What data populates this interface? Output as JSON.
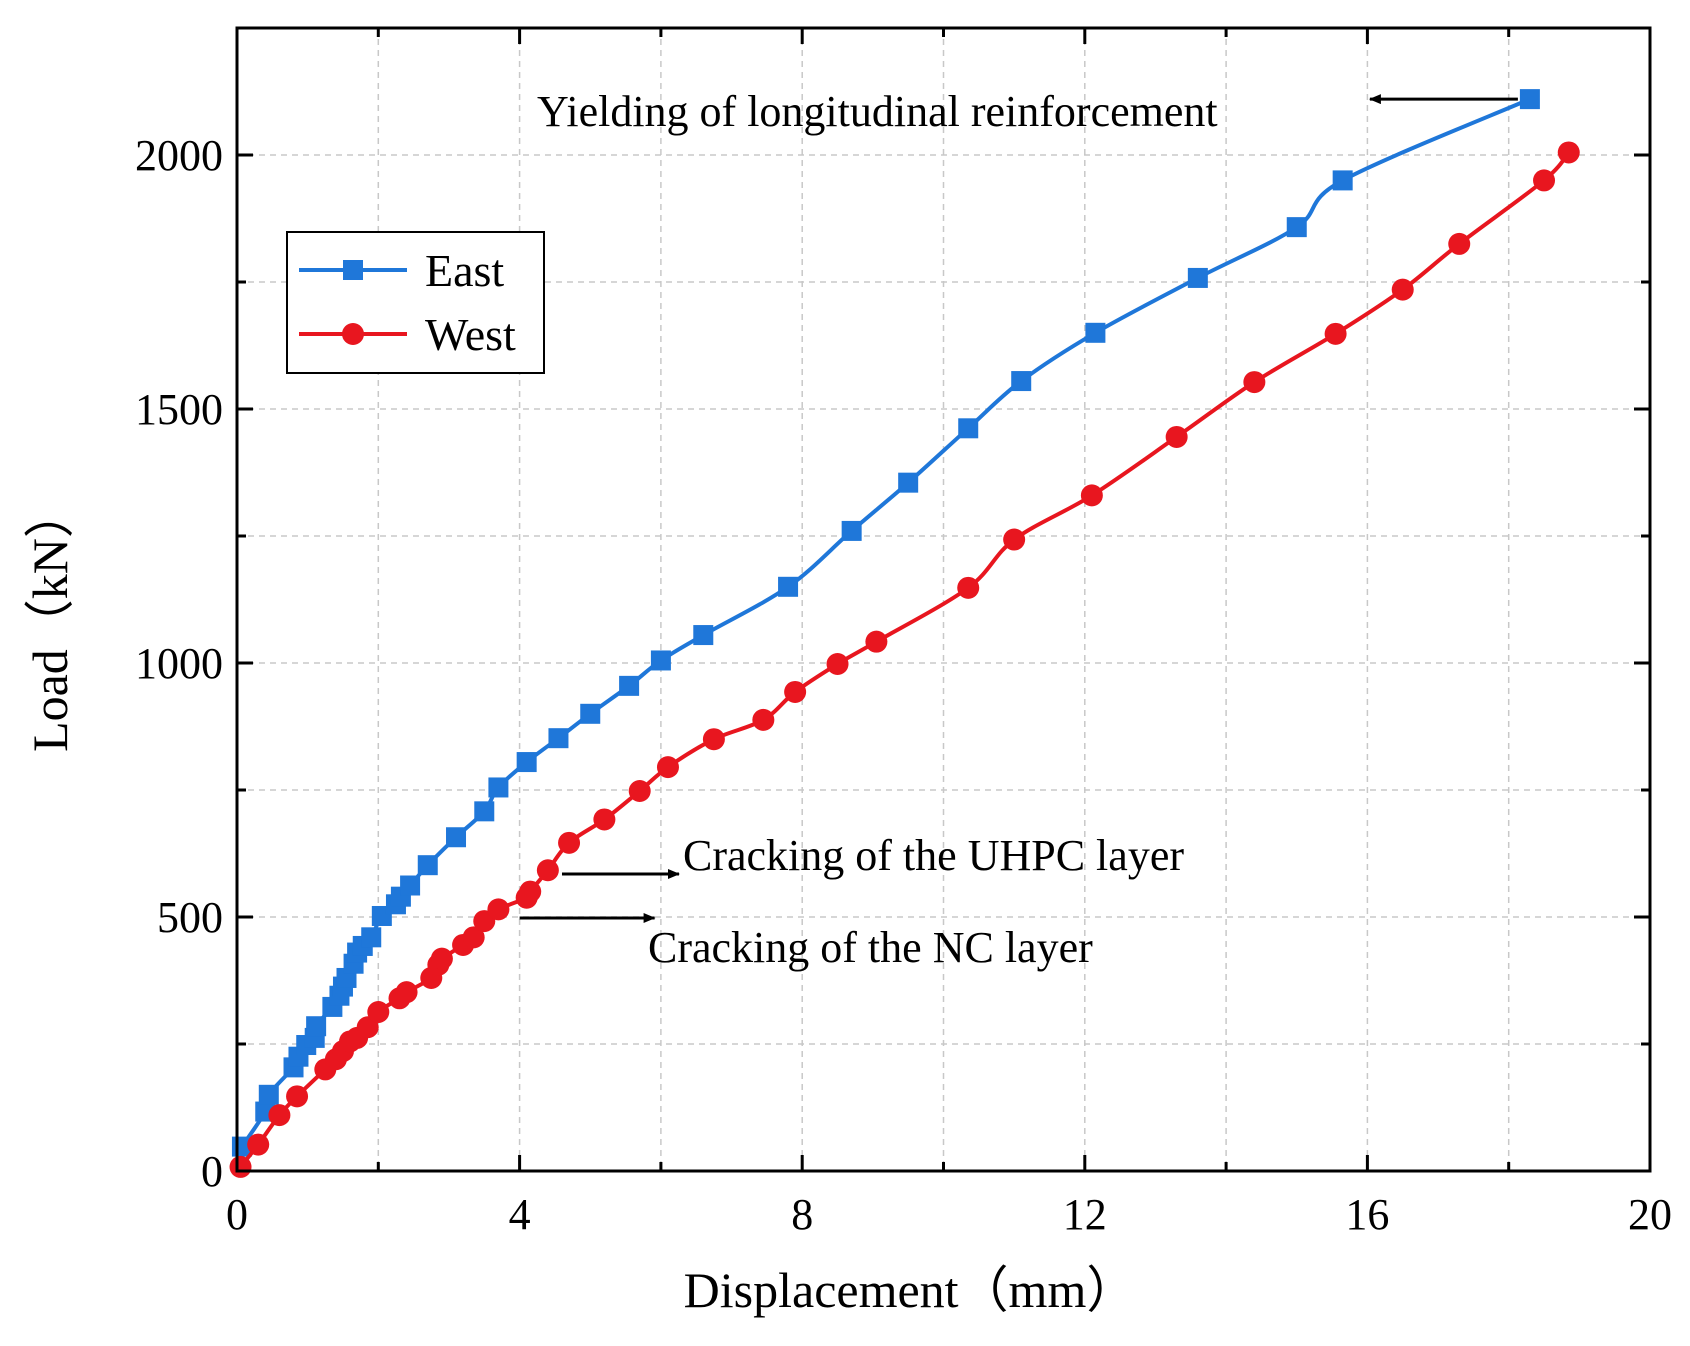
{
  "chart_data": {
    "type": "line",
    "title": "",
    "xlabel": "Displacement（mm）",
    "ylabel": "Load（kN）",
    "xlim": [
      0,
      20
    ],
    "ylim": [
      0,
      2250
    ],
    "xticks": [
      0,
      4,
      8,
      12,
      16,
      20
    ],
    "yticks": [
      0,
      500,
      1000,
      1500,
      2000
    ],
    "grid": true,
    "legend_position": "upper-left",
    "series": [
      {
        "name": "East",
        "color": "#1f77d9",
        "marker": "square",
        "points": [
          [
            0.07,
            48
          ],
          [
            0.4,
            117
          ],
          [
            0.45,
            150
          ],
          [
            0.8,
            204
          ],
          [
            0.87,
            225
          ],
          [
            0.98,
            248
          ],
          [
            1.1,
            262
          ],
          [
            1.12,
            285
          ],
          [
            1.35,
            323
          ],
          [
            1.45,
            345
          ],
          [
            1.5,
            363
          ],
          [
            1.55,
            380
          ],
          [
            1.65,
            408
          ],
          [
            1.7,
            430
          ],
          [
            1.78,
            443
          ],
          [
            1.9,
            460
          ],
          [
            2.05,
            502
          ],
          [
            2.25,
            525
          ],
          [
            2.32,
            540
          ],
          [
            2.45,
            562
          ],
          [
            2.7,
            602
          ],
          [
            3.1,
            657
          ],
          [
            3.5,
            708
          ],
          [
            3.7,
            755
          ],
          [
            4.1,
            805
          ],
          [
            4.55,
            852
          ],
          [
            5.0,
            900
          ],
          [
            5.55,
            955
          ],
          [
            6.0,
            1005
          ],
          [
            6.6,
            1055
          ],
          [
            7.8,
            1150
          ],
          [
            8.7,
            1260
          ],
          [
            9.5,
            1355
          ],
          [
            10.35,
            1462
          ],
          [
            11.1,
            1555
          ],
          [
            12.15,
            1650
          ],
          [
            13.6,
            1758
          ],
          [
            15.0,
            1858
          ],
          [
            15.65,
            1950
          ],
          [
            18.3,
            2110
          ]
        ]
      },
      {
        "name": "West",
        "color": "#e8161f",
        "marker": "circle",
        "points": [
          [
            0.05,
            8
          ],
          [
            0.3,
            52
          ],
          [
            0.6,
            110
          ],
          [
            0.85,
            147
          ],
          [
            1.25,
            200
          ],
          [
            1.4,
            220
          ],
          [
            1.5,
            236
          ],
          [
            1.6,
            255
          ],
          [
            1.7,
            262
          ],
          [
            1.85,
            283
          ],
          [
            2.0,
            313
          ],
          [
            2.3,
            340
          ],
          [
            2.4,
            352
          ],
          [
            2.75,
            380
          ],
          [
            2.85,
            406
          ],
          [
            2.9,
            418
          ],
          [
            3.2,
            445
          ],
          [
            3.35,
            460
          ],
          [
            3.5,
            492
          ],
          [
            3.7,
            515
          ],
          [
            4.1,
            538
          ],
          [
            4.15,
            550
          ],
          [
            4.4,
            592
          ],
          [
            4.7,
            646
          ],
          [
            5.2,
            692
          ],
          [
            5.7,
            748
          ],
          [
            6.1,
            795
          ],
          [
            6.75,
            850
          ],
          [
            7.45,
            888
          ],
          [
            7.9,
            943
          ],
          [
            8.5,
            998
          ],
          [
            9.05,
            1042
          ],
          [
            10.35,
            1148
          ],
          [
            11.0,
            1243
          ],
          [
            12.1,
            1330
          ],
          [
            13.3,
            1445
          ],
          [
            14.4,
            1553
          ],
          [
            15.55,
            1648
          ],
          [
            16.5,
            1735
          ],
          [
            17.3,
            1825
          ],
          [
            18.5,
            1950
          ],
          [
            18.85,
            2005
          ]
        ]
      }
    ],
    "annotations": [
      {
        "text": "Yielding of longitudinal reinforcement",
        "series": "East",
        "point": [
          18.3,
          2110
        ]
      },
      {
        "text": "Cracking of the UHPC layer",
        "series": "West",
        "point": [
          4.6,
          592
        ]
      },
      {
        "text": "Cracking of the NC layer",
        "series": "West",
        "point": [
          4.0,
          500
        ]
      }
    ]
  }
}
